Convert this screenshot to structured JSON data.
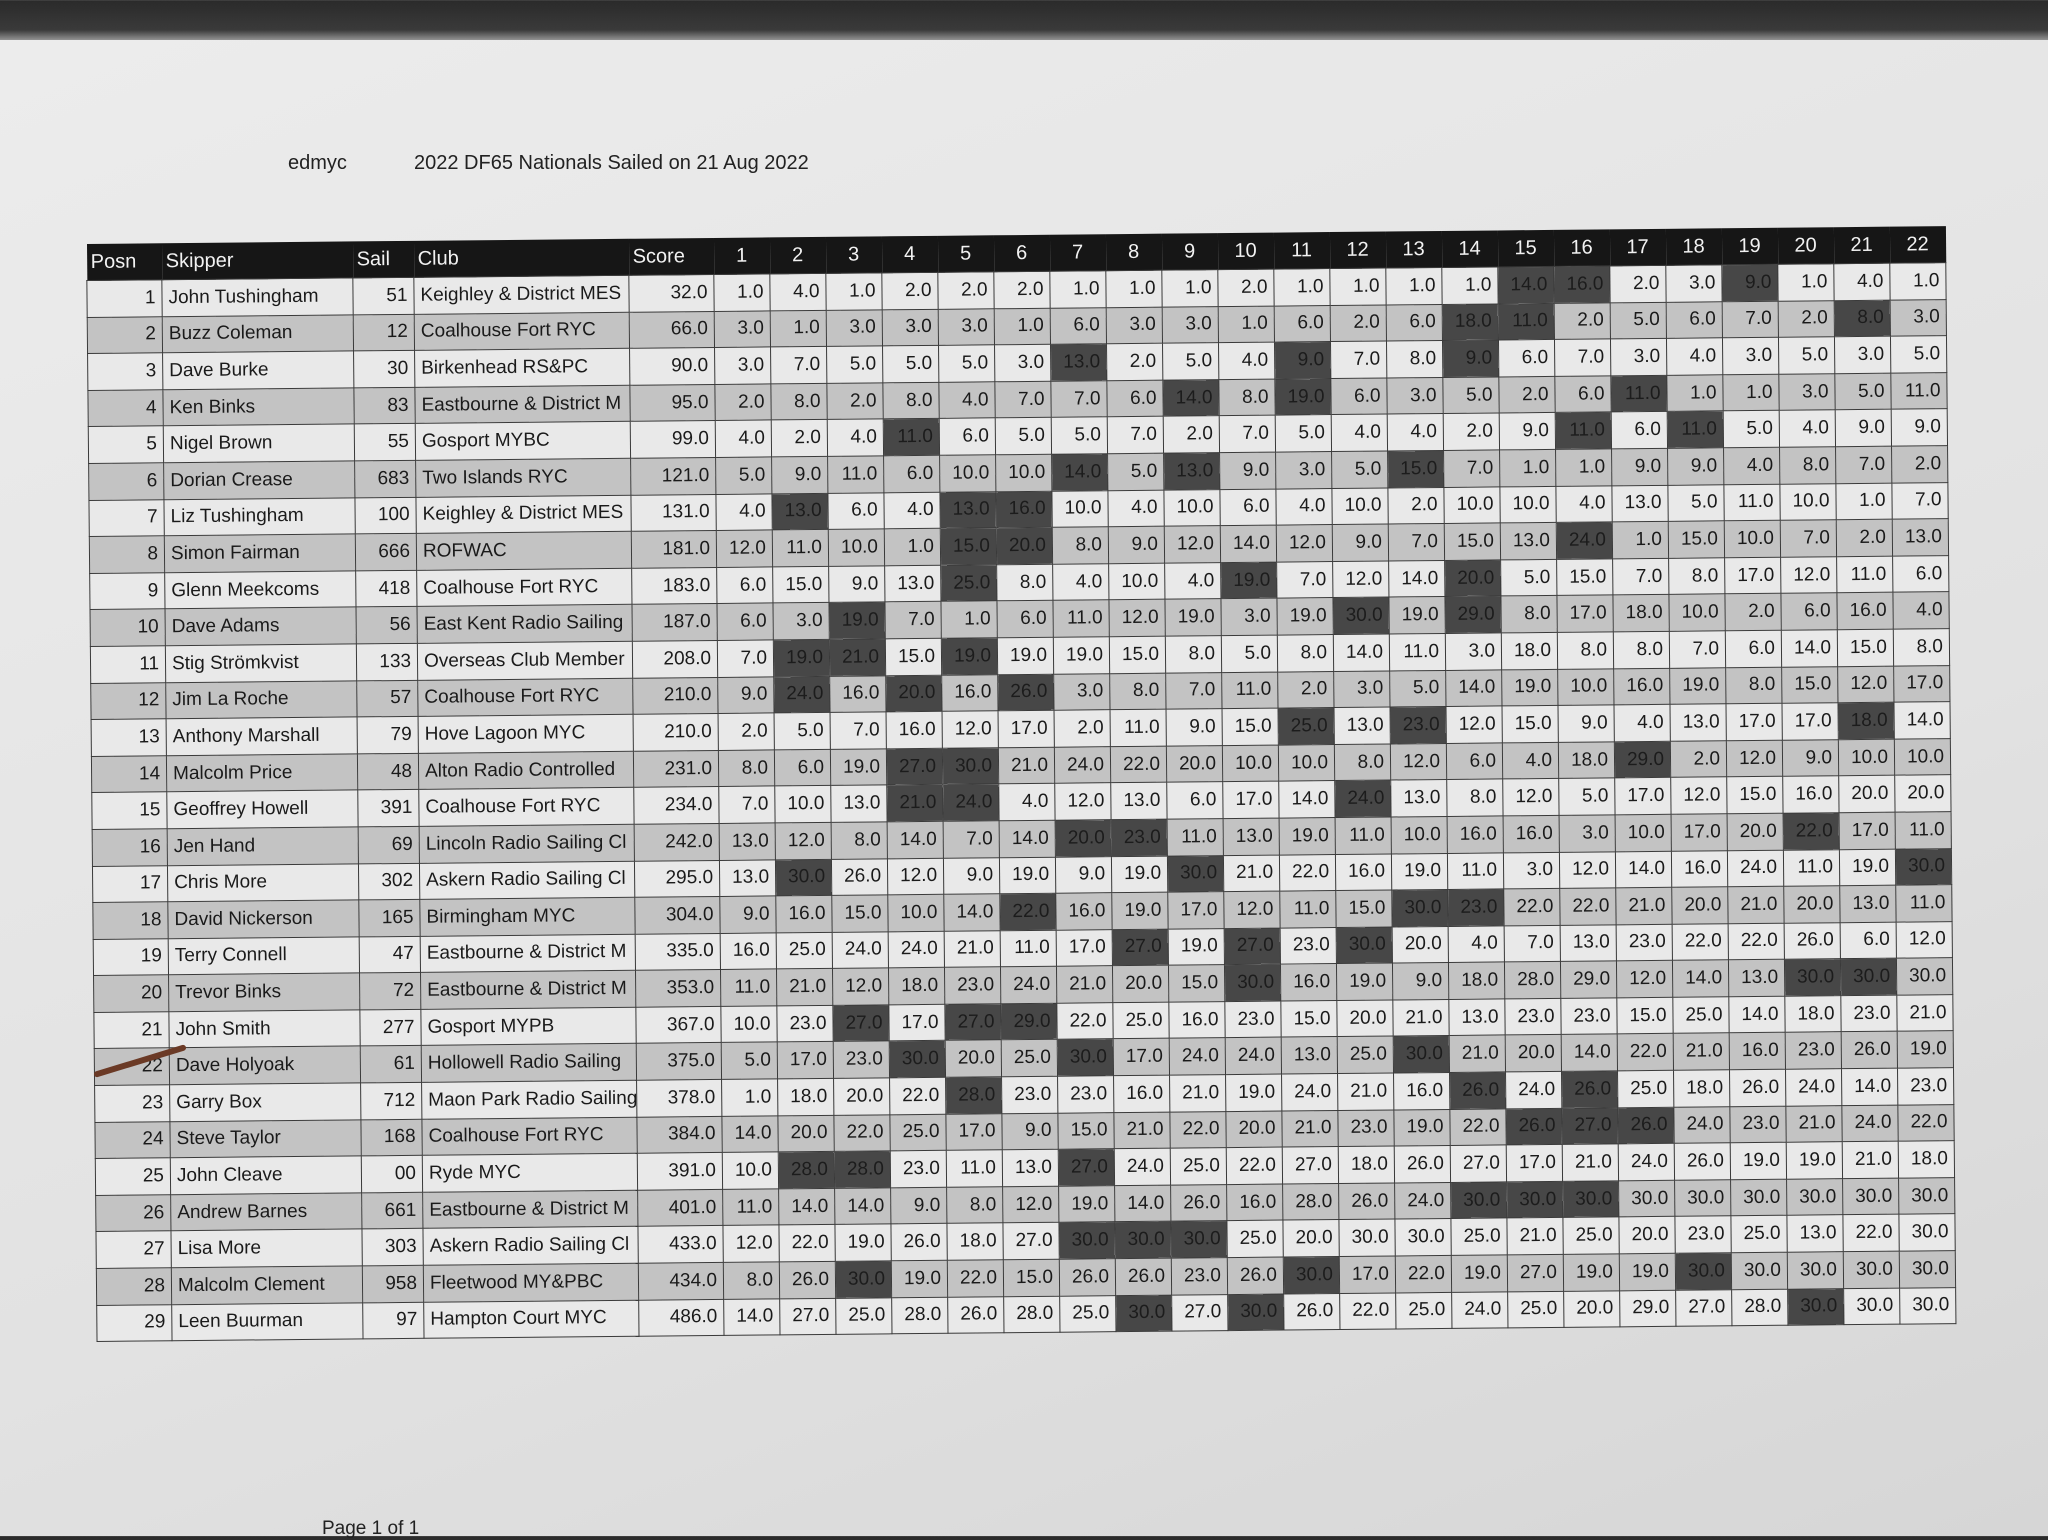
{
  "header": {
    "org": "edmyc",
    "event": "2022 DF65 Nationals Sailed on 21 Aug 2022"
  },
  "columns": {
    "posn": "Posn",
    "skipper": "Skipper",
    "sail": "Sail",
    "club": "Club",
    "score": "Score",
    "races": [
      "1",
      "2",
      "3",
      "4",
      "5",
      "6",
      "7",
      "8",
      "9",
      "10",
      "11",
      "12",
      "13",
      "14",
      "15",
      "16",
      "17",
      "18",
      "19",
      "20",
      "21",
      "22"
    ]
  },
  "colors": {
    "header_bg": "#161616",
    "row_light": "#e9e9e9",
    "row_dark": "#c3c3c3",
    "discard": "#474747"
  },
  "rows": [
    {
      "posn": "1",
      "skipper": "John Tushingham",
      "sail": "51",
      "club": "Keighley & District MES",
      "score": "32.0",
      "races": [
        "1.0",
        "4.0",
        "1.0",
        "2.0",
        "2.0",
        "2.0",
        "1.0",
        "1.0",
        "1.0",
        "2.0",
        "1.0",
        "1.0",
        "1.0",
        "1.0",
        "14.0",
        "16.0",
        "2.0",
        "3.0",
        "9.0",
        "1.0",
        "4.0",
        "1.0"
      ],
      "discards": [
        15,
        16,
        19
      ]
    },
    {
      "posn": "2",
      "skipper": "Buzz Coleman",
      "sail": "12",
      "club": "Coalhouse Fort RYC",
      "score": "66.0",
      "races": [
        "3.0",
        "1.0",
        "3.0",
        "3.0",
        "3.0",
        "1.0",
        "6.0",
        "3.0",
        "3.0",
        "1.0",
        "6.0",
        "2.0",
        "6.0",
        "18.0",
        "11.0",
        "2.0",
        "5.0",
        "6.0",
        "7.0",
        "2.0",
        "8.0",
        "3.0"
      ],
      "discards": [
        14,
        15,
        21
      ]
    },
    {
      "posn": "3",
      "skipper": "Dave Burke",
      "sail": "30",
      "club": "Birkenhead RS&PC",
      "score": "90.0",
      "races": [
        "3.0",
        "7.0",
        "5.0",
        "5.0",
        "5.0",
        "3.0",
        "13.0",
        "2.0",
        "5.0",
        "4.0",
        "9.0",
        "7.0",
        "8.0",
        "9.0",
        "6.0",
        "7.0",
        "3.0",
        "4.0",
        "3.0",
        "5.0",
        "3.0",
        "5.0"
      ],
      "discards": [
        7,
        11,
        14
      ]
    },
    {
      "posn": "4",
      "skipper": "Ken Binks",
      "sail": "83",
      "club": "Eastbourne & District M",
      "score": "95.0",
      "races": [
        "2.0",
        "8.0",
        "2.0",
        "8.0",
        "4.0",
        "7.0",
        "7.0",
        "6.0",
        "14.0",
        "8.0",
        "19.0",
        "6.0",
        "3.0",
        "5.0",
        "2.0",
        "6.0",
        "11.0",
        "1.0",
        "1.0",
        "3.0",
        "5.0",
        "11.0"
      ],
      "discards": [
        9,
        11,
        17
      ]
    },
    {
      "posn": "5",
      "skipper": "Nigel Brown",
      "sail": "55",
      "club": "Gosport MYBC",
      "score": "99.0",
      "races": [
        "4.0",
        "2.0",
        "4.0",
        "11.0",
        "6.0",
        "5.0",
        "5.0",
        "7.0",
        "2.0",
        "7.0",
        "5.0",
        "4.0",
        "4.0",
        "2.0",
        "9.0",
        "11.0",
        "6.0",
        "11.0",
        "5.0",
        "4.0",
        "9.0",
        "9.0"
      ],
      "discards": [
        4,
        16,
        18
      ]
    },
    {
      "posn": "6",
      "skipper": "Dorian Crease",
      "sail": "683",
      "club": "Two Islands RYC",
      "score": "121.0",
      "races": [
        "5.0",
        "9.0",
        "11.0",
        "6.0",
        "10.0",
        "10.0",
        "14.0",
        "5.0",
        "13.0",
        "9.0",
        "3.0",
        "5.0",
        "15.0",
        "7.0",
        "1.0",
        "1.0",
        "9.0",
        "9.0",
        "4.0",
        "8.0",
        "7.0",
        "2.0"
      ],
      "discards": [
        7,
        9,
        13
      ]
    },
    {
      "posn": "7",
      "skipper": "Liz Tushingham",
      "sail": "100",
      "club": "Keighley & District MES",
      "score": "131.0",
      "races": [
        "4.0",
        "13.0",
        "6.0",
        "4.0",
        "13.0",
        "16.0",
        "10.0",
        "4.0",
        "10.0",
        "6.0",
        "4.0",
        "10.0",
        "2.0",
        "10.0",
        "10.0",
        "4.0",
        "13.0",
        "5.0",
        "11.0",
        "10.0",
        "1.0",
        "7.0"
      ],
      "discards": [
        2,
        5,
        6
      ]
    },
    {
      "posn": "8",
      "skipper": "Simon Fairman",
      "sail": "666",
      "club": "ROFWAC",
      "score": "181.0",
      "races": [
        "12.0",
        "11.0",
        "10.0",
        "1.0",
        "15.0",
        "20.0",
        "8.0",
        "9.0",
        "12.0",
        "14.0",
        "12.0",
        "9.0",
        "7.0",
        "15.0",
        "13.0",
        "24.0",
        "1.0",
        "15.0",
        "10.0",
        "7.0",
        "2.0",
        "13.0"
      ],
      "discards": [
        5,
        6,
        16
      ]
    },
    {
      "posn": "9",
      "skipper": "Glenn Meekcoms",
      "sail": "418",
      "club": "Coalhouse Fort RYC",
      "score": "183.0",
      "races": [
        "6.0",
        "15.0",
        "9.0",
        "13.0",
        "25.0",
        "8.0",
        "4.0",
        "10.0",
        "4.0",
        "19.0",
        "7.0",
        "12.0",
        "14.0",
        "20.0",
        "5.0",
        "15.0",
        "7.0",
        "8.0",
        "17.0",
        "12.0",
        "11.0",
        "6.0"
      ],
      "discards": [
        5,
        10,
        14
      ]
    },
    {
      "posn": "10",
      "skipper": "Dave Adams",
      "sail": "56",
      "club": "East Kent Radio Sailing",
      "score": "187.0",
      "races": [
        "6.0",
        "3.0",
        "19.0",
        "7.0",
        "1.0",
        "6.0",
        "11.0",
        "12.0",
        "19.0",
        "3.0",
        "19.0",
        "30.0",
        "19.0",
        "29.0",
        "8.0",
        "17.0",
        "18.0",
        "10.0",
        "2.0",
        "6.0",
        "16.0",
        "4.0"
      ],
      "discards": [
        3,
        12,
        14
      ]
    },
    {
      "posn": "11",
      "skipper": "Stig Strömkvist",
      "sail": "133",
      "club": "Overseas Club Member",
      "score": "208.0",
      "races": [
        "7.0",
        "19.0",
        "21.0",
        "15.0",
        "19.0",
        "19.0",
        "19.0",
        "15.0",
        "8.0",
        "5.0",
        "8.0",
        "14.0",
        "11.0",
        "3.0",
        "18.0",
        "8.0",
        "8.0",
        "7.0",
        "6.0",
        "14.0",
        "15.0",
        "8.0"
      ],
      "discards": [
        2,
        3,
        5
      ]
    },
    {
      "posn": "12",
      "skipper": "Jim La Roche",
      "sail": "57",
      "club": "Coalhouse Fort RYC",
      "score": "210.0",
      "races": [
        "9.0",
        "24.0",
        "16.0",
        "20.0",
        "16.0",
        "26.0",
        "3.0",
        "8.0",
        "7.0",
        "11.0",
        "2.0",
        "3.0",
        "5.0",
        "14.0",
        "19.0",
        "10.0",
        "16.0",
        "19.0",
        "8.0",
        "15.0",
        "12.0",
        "17.0"
      ],
      "discards": [
        2,
        4,
        6
      ]
    },
    {
      "posn": "13",
      "skipper": "Anthony Marshall",
      "sail": "79",
      "club": "Hove Lagoon MYC",
      "score": "210.0",
      "races": [
        "2.0",
        "5.0",
        "7.0",
        "16.0",
        "12.0",
        "17.0",
        "2.0",
        "11.0",
        "9.0",
        "15.0",
        "25.0",
        "13.0",
        "23.0",
        "12.0",
        "15.0",
        "9.0",
        "4.0",
        "13.0",
        "17.0",
        "17.0",
        "18.0",
        "14.0"
      ],
      "discards": [
        11,
        13,
        21
      ]
    },
    {
      "posn": "14",
      "skipper": "Malcolm Price",
      "sail": "48",
      "club": "Alton Radio Controlled",
      "score": "231.0",
      "races": [
        "8.0",
        "6.0",
        "19.0",
        "27.0",
        "30.0",
        "21.0",
        "24.0",
        "22.0",
        "20.0",
        "10.0",
        "10.0",
        "8.0",
        "12.0",
        "6.0",
        "4.0",
        "18.0",
        "29.0",
        "2.0",
        "12.0",
        "9.0",
        "10.0",
        "10.0"
      ],
      "discards": [
        4,
        5,
        17
      ]
    },
    {
      "posn": "15",
      "skipper": "Geoffrey Howell",
      "sail": "391",
      "club": "Coalhouse Fort RYC",
      "score": "234.0",
      "races": [
        "7.0",
        "10.0",
        "13.0",
        "21.0",
        "24.0",
        "4.0",
        "12.0",
        "13.0",
        "6.0",
        "17.0",
        "14.0",
        "24.0",
        "13.0",
        "8.0",
        "12.0",
        "5.0",
        "17.0",
        "12.0",
        "15.0",
        "16.0",
        "20.0",
        "20.0"
      ],
      "discards": [
        4,
        5,
        12
      ]
    },
    {
      "posn": "16",
      "skipper": "Jen Hand",
      "sail": "69",
      "club": "Lincoln Radio Sailing Cl",
      "score": "242.0",
      "races": [
        "13.0",
        "12.0",
        "8.0",
        "14.0",
        "7.0",
        "14.0",
        "20.0",
        "23.0",
        "11.0",
        "13.0",
        "19.0",
        "11.0",
        "10.0",
        "16.0",
        "16.0",
        "3.0",
        "10.0",
        "17.0",
        "20.0",
        "22.0",
        "17.0",
        "11.0"
      ],
      "discards": [
        7,
        8,
        20
      ]
    },
    {
      "posn": "17",
      "skipper": "Chris More",
      "sail": "302",
      "club": "Askern Radio Sailing Cl",
      "score": "295.0",
      "races": [
        "13.0",
        "30.0",
        "26.0",
        "12.0",
        "9.0",
        "19.0",
        "9.0",
        "19.0",
        "30.0",
        "21.0",
        "22.0",
        "16.0",
        "19.0",
        "11.0",
        "3.0",
        "12.0",
        "14.0",
        "16.0",
        "24.0",
        "11.0",
        "19.0",
        "30.0"
      ],
      "discards": [
        2,
        9,
        22
      ]
    },
    {
      "posn": "18",
      "skipper": "David Nickerson",
      "sail": "165",
      "club": "Birmingham MYC",
      "score": "304.0",
      "races": [
        "9.0",
        "16.0",
        "15.0",
        "10.0",
        "14.0",
        "22.0",
        "16.0",
        "19.0",
        "17.0",
        "12.0",
        "11.0",
        "15.0",
        "30.0",
        "23.0",
        "22.0",
        "22.0",
        "21.0",
        "20.0",
        "21.0",
        "20.0",
        "13.0",
        "11.0"
      ],
      "discards": [
        6,
        13,
        14
      ]
    },
    {
      "posn": "19",
      "skipper": "Terry Connell",
      "sail": "47",
      "club": "Eastbourne & District M",
      "score": "335.0",
      "races": [
        "16.0",
        "25.0",
        "24.0",
        "24.0",
        "21.0",
        "11.0",
        "17.0",
        "27.0",
        "19.0",
        "27.0",
        "23.0",
        "30.0",
        "20.0",
        "4.0",
        "7.0",
        "13.0",
        "23.0",
        "22.0",
        "22.0",
        "26.0",
        "6.0",
        "12.0"
      ],
      "discards": [
        8,
        10,
        12
      ]
    },
    {
      "posn": "20",
      "skipper": "Trevor Binks",
      "sail": "72",
      "club": "Eastbourne & District M",
      "score": "353.0",
      "races": [
        "11.0",
        "21.0",
        "12.0",
        "18.0",
        "23.0",
        "24.0",
        "21.0",
        "20.0",
        "15.0",
        "30.0",
        "16.0",
        "19.0",
        "9.0",
        "18.0",
        "28.0",
        "29.0",
        "12.0",
        "14.0",
        "13.0",
        "30.0",
        "30.0",
        "30.0"
      ],
      "discards": [
        10,
        20,
        21
      ]
    },
    {
      "posn": "21",
      "skipper": "John Smith",
      "sail": "277",
      "club": "Gosport MYPB",
      "score": "367.0",
      "races": [
        "10.0",
        "23.0",
        "27.0",
        "17.0",
        "27.0",
        "29.0",
        "22.0",
        "25.0",
        "16.0",
        "23.0",
        "15.0",
        "20.0",
        "21.0",
        "13.0",
        "23.0",
        "23.0",
        "15.0",
        "25.0",
        "14.0",
        "18.0",
        "23.0",
        "21.0"
      ],
      "discards": [
        3,
        5,
        6
      ]
    },
    {
      "posn": "22",
      "skipper": "Dave Holyoak",
      "sail": "61",
      "club": "Hollowell Radio Sailing",
      "score": "375.0",
      "races": [
        "5.0",
        "17.0",
        "23.0",
        "30.0",
        "20.0",
        "25.0",
        "30.0",
        "17.0",
        "24.0",
        "24.0",
        "13.0",
        "25.0",
        "30.0",
        "21.0",
        "20.0",
        "14.0",
        "22.0",
        "21.0",
        "16.0",
        "23.0",
        "26.0",
        "19.0"
      ],
      "discards": [
        4,
        7,
        13
      ]
    },
    {
      "posn": "23",
      "skipper": "Garry Box",
      "sail": "712",
      "club": "Maon Park Radio Sailing",
      "score": "378.0",
      "races": [
        "1.0",
        "18.0",
        "20.0",
        "22.0",
        "28.0",
        "23.0",
        "23.0",
        "16.0",
        "21.0",
        "19.0",
        "24.0",
        "21.0",
        "16.0",
        "26.0",
        "24.0",
        "26.0",
        "25.0",
        "18.0",
        "26.0",
        "24.0",
        "14.0",
        "23.0"
      ],
      "discards": [
        5,
        14,
        16
      ]
    },
    {
      "posn": "24",
      "skipper": "Steve Taylor",
      "sail": "168",
      "club": "Coalhouse Fort RYC",
      "score": "384.0",
      "races": [
        "14.0",
        "20.0",
        "22.0",
        "25.0",
        "17.0",
        "9.0",
        "15.0",
        "21.0",
        "22.0",
        "20.0",
        "21.0",
        "23.0",
        "19.0",
        "22.0",
        "26.0",
        "27.0",
        "26.0",
        "24.0",
        "23.0",
        "21.0",
        "24.0",
        "22.0"
      ],
      "discards": [
        15,
        16,
        17
      ]
    },
    {
      "posn": "25",
      "skipper": "John Cleave",
      "sail": "00",
      "club": "Ryde MYC",
      "score": "391.0",
      "races": [
        "10.0",
        "28.0",
        "28.0",
        "23.0",
        "11.0",
        "13.0",
        "27.0",
        "24.0",
        "25.0",
        "22.0",
        "27.0",
        "18.0",
        "26.0",
        "27.0",
        "17.0",
        "21.0",
        "24.0",
        "26.0",
        "19.0",
        "19.0",
        "21.0",
        "18.0"
      ],
      "discards": [
        2,
        3,
        7
      ]
    },
    {
      "posn": "26",
      "skipper": "Andrew Barnes",
      "sail": "661",
      "club": "Eastbourne & District M",
      "score": "401.0",
      "races": [
        "11.0",
        "14.0",
        "14.0",
        "9.0",
        "8.0",
        "12.0",
        "19.0",
        "14.0",
        "26.0",
        "16.0",
        "28.0",
        "26.0",
        "24.0",
        "30.0",
        "30.0",
        "30.0",
        "30.0",
        "30.0",
        "30.0",
        "30.0",
        "30.0",
        "30.0"
      ],
      "discards": [
        14,
        15,
        16
      ]
    },
    {
      "posn": "27",
      "skipper": "Lisa More",
      "sail": "303",
      "club": "Askern Radio Sailing Cl",
      "score": "433.0",
      "races": [
        "12.0",
        "22.0",
        "19.0",
        "26.0",
        "18.0",
        "27.0",
        "30.0",
        "30.0",
        "30.0",
        "25.0",
        "20.0",
        "30.0",
        "30.0",
        "25.0",
        "21.0",
        "25.0",
        "20.0",
        "23.0",
        "25.0",
        "13.0",
        "22.0",
        "30.0"
      ],
      "discards": [
        7,
        8,
        9
      ]
    },
    {
      "posn": "28",
      "skipper": "Malcolm Clement",
      "sail": "958",
      "club": "Fleetwood MY&PBC",
      "score": "434.0",
      "races": [
        "8.0",
        "26.0",
        "30.0",
        "19.0",
        "22.0",
        "15.0",
        "26.0",
        "26.0",
        "23.0",
        "26.0",
        "30.0",
        "17.0",
        "22.0",
        "19.0",
        "27.0",
        "19.0",
        "19.0",
        "30.0",
        "30.0",
        "30.0",
        "30.0",
        "30.0"
      ],
      "discards": [
        3,
        11,
        18
      ]
    },
    {
      "posn": "29",
      "skipper": "Leen Buurman",
      "sail": "97",
      "club": "Hampton Court MYC",
      "score": "486.0",
      "races": [
        "14.0",
        "27.0",
        "25.0",
        "28.0",
        "26.0",
        "28.0",
        "25.0",
        "30.0",
        "27.0",
        "30.0",
        "26.0",
        "22.0",
        "25.0",
        "24.0",
        "25.0",
        "20.0",
        "29.0",
        "27.0",
        "28.0",
        "30.0",
        "30.0",
        "30.0"
      ],
      "discards": [
        8,
        10,
        20
      ]
    }
  ],
  "footer": {
    "page": "Page 1 of 1"
  }
}
